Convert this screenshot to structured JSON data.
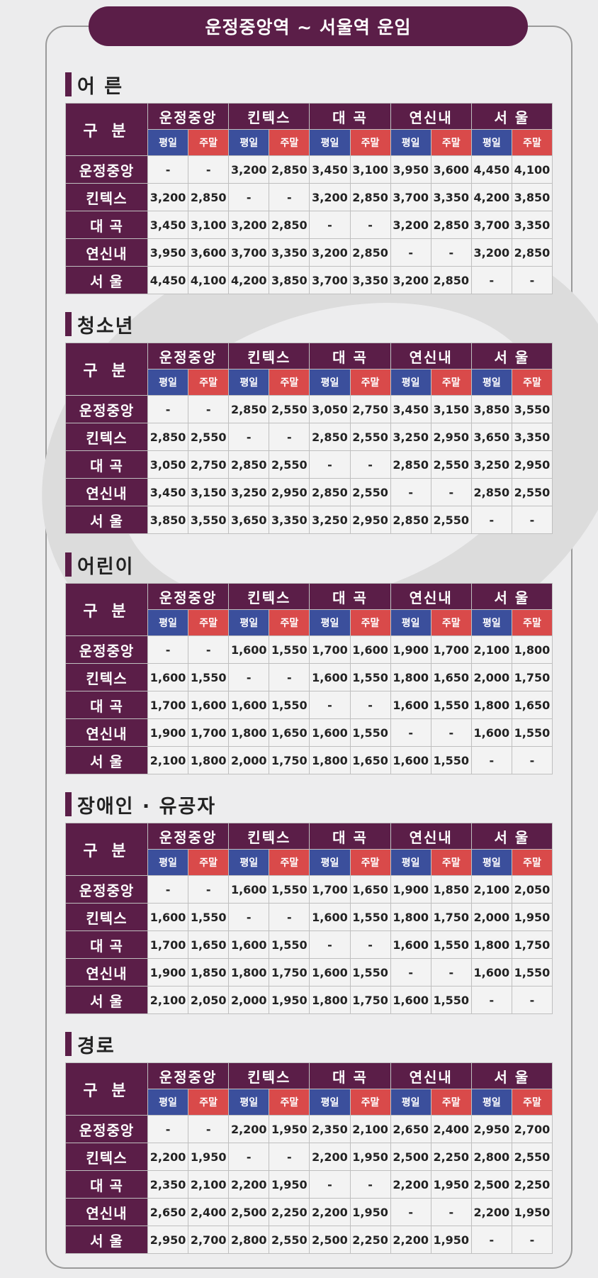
{
  "title": "운정중앙역 ~ 서울역 운임",
  "header": {
    "gubun": "구 분",
    "stations": [
      "운정중앙",
      "킨텍스",
      "대 곡",
      "연신내",
      "서 울"
    ],
    "weekday": "평일",
    "weekend": "주말"
  },
  "sections": [
    {
      "title": "어 른",
      "rows": [
        {
          "label": "운정중앙",
          "values": [
            "-",
            "-",
            "3,200",
            "2,850",
            "3,450",
            "3,100",
            "3,950",
            "3,600",
            "4,450",
            "4,100"
          ]
        },
        {
          "label": "킨텍스",
          "values": [
            "3,200",
            "2,850",
            "-",
            "-",
            "3,200",
            "2,850",
            "3,700",
            "3,350",
            "4,200",
            "3,850"
          ]
        },
        {
          "label": "대 곡",
          "values": [
            "3,450",
            "3,100",
            "3,200",
            "2,850",
            "-",
            "-",
            "3,200",
            "2,850",
            "3,700",
            "3,350"
          ]
        },
        {
          "label": "연신내",
          "values": [
            "3,950",
            "3,600",
            "3,700",
            "3,350",
            "3,200",
            "2,850",
            "-",
            "-",
            "3,200",
            "2,850"
          ]
        },
        {
          "label": "서 울",
          "values": [
            "4,450",
            "4,100",
            "4,200",
            "3,850",
            "3,700",
            "3,350",
            "3,200",
            "2,850",
            "-",
            "-"
          ]
        }
      ]
    },
    {
      "title": "청소년",
      "rows": [
        {
          "label": "운정중앙",
          "values": [
            "-",
            "-",
            "2,850",
            "2,550",
            "3,050",
            "2,750",
            "3,450",
            "3,150",
            "3,850",
            "3,550"
          ]
        },
        {
          "label": "킨텍스",
          "values": [
            "2,850",
            "2,550",
            "-",
            "-",
            "2,850",
            "2,550",
            "3,250",
            "2,950",
            "3,650",
            "3,350"
          ]
        },
        {
          "label": "대 곡",
          "values": [
            "3,050",
            "2,750",
            "2,850",
            "2,550",
            "-",
            "-",
            "2,850",
            "2,550",
            "3,250",
            "2,950"
          ]
        },
        {
          "label": "연신내",
          "values": [
            "3,450",
            "3,150",
            "3,250",
            "2,950",
            "2,850",
            "2,550",
            "-",
            "-",
            "2,850",
            "2,550"
          ]
        },
        {
          "label": "서 울",
          "values": [
            "3,850",
            "3,550",
            "3,650",
            "3,350",
            "3,250",
            "2,950",
            "2,850",
            "2,550",
            "-",
            "-"
          ]
        }
      ]
    },
    {
      "title": "어린이",
      "rows": [
        {
          "label": "운정중앙",
          "values": [
            "-",
            "-",
            "1,600",
            "1,550",
            "1,700",
            "1,600",
            "1,900",
            "1,700",
            "2,100",
            "1,800"
          ]
        },
        {
          "label": "킨텍스",
          "values": [
            "1,600",
            "1,550",
            "-",
            "-",
            "1,600",
            "1,550",
            "1,800",
            "1,650",
            "2,000",
            "1,750"
          ]
        },
        {
          "label": "대 곡",
          "values": [
            "1,700",
            "1,600",
            "1,600",
            "1,550",
            "-",
            "-",
            "1,600",
            "1,550",
            "1,800",
            "1,650"
          ]
        },
        {
          "label": "연신내",
          "values": [
            "1,900",
            "1,700",
            "1,800",
            "1,650",
            "1,600",
            "1,550",
            "-",
            "-",
            "1,600",
            "1,550"
          ]
        },
        {
          "label": "서 울",
          "values": [
            "2,100",
            "1,800",
            "2,000",
            "1,750",
            "1,800",
            "1,650",
            "1,600",
            "1,550",
            "-",
            "-"
          ]
        }
      ]
    },
    {
      "title": "장애인 · 유공자",
      "rows": [
        {
          "label": "운정중앙",
          "values": [
            "-",
            "-",
            "1,600",
            "1,550",
            "1,700",
            "1,650",
            "1,900",
            "1,850",
            "2,100",
            "2,050"
          ]
        },
        {
          "label": "킨텍스",
          "values": [
            "1,600",
            "1,550",
            "-",
            "-",
            "1,600",
            "1,550",
            "1,800",
            "1,750",
            "2,000",
            "1,950"
          ]
        },
        {
          "label": "대 곡",
          "values": [
            "1,700",
            "1,650",
            "1,600",
            "1,550",
            "-",
            "-",
            "1,600",
            "1,550",
            "1,800",
            "1,750"
          ]
        },
        {
          "label": "연신내",
          "values": [
            "1,900",
            "1,850",
            "1,800",
            "1,750",
            "1,600",
            "1,550",
            "-",
            "-",
            "1,600",
            "1,550"
          ]
        },
        {
          "label": "서 울",
          "values": [
            "2,100",
            "2,050",
            "2,000",
            "1,950",
            "1,800",
            "1,750",
            "1,600",
            "1,550",
            "-",
            "-"
          ]
        }
      ]
    },
    {
      "title": "경로",
      "rows": [
        {
          "label": "운정중앙",
          "values": [
            "-",
            "-",
            "2,200",
            "1,950",
            "2,350",
            "2,100",
            "2,650",
            "2,400",
            "2,950",
            "2,700"
          ]
        },
        {
          "label": "킨텍스",
          "values": [
            "2,200",
            "1,950",
            "-",
            "-",
            "2,200",
            "1,950",
            "2,500",
            "2,250",
            "2,800",
            "2,550"
          ]
        },
        {
          "label": "대 곡",
          "values": [
            "2,350",
            "2,100",
            "2,200",
            "1,950",
            "-",
            "-",
            "2,200",
            "1,950",
            "2,500",
            "2,250"
          ]
        },
        {
          "label": "연신내",
          "values": [
            "2,650",
            "2,400",
            "2,500",
            "2,250",
            "2,200",
            "1,950",
            "-",
            "-",
            "2,200",
            "1,950"
          ]
        },
        {
          "label": "서 울",
          "values": [
            "2,950",
            "2,700",
            "2,800",
            "2,550",
            "2,500",
            "2,250",
            "2,200",
            "1,950",
            "-",
            "-"
          ]
        }
      ]
    }
  ]
}
